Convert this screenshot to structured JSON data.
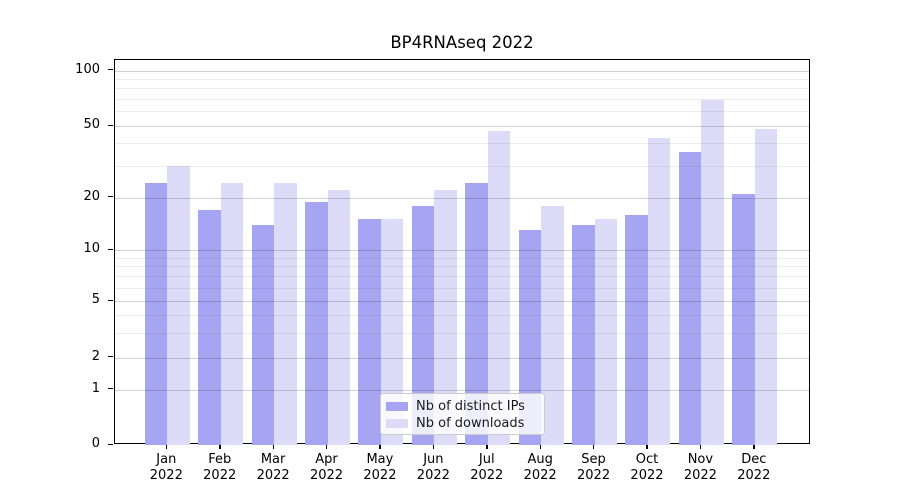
{
  "title": "BP4RNAseq 2022",
  "chart_data": {
    "type": "bar",
    "title": "BP4RNAseq 2022",
    "categories": [
      "Jan 2022",
      "Feb 2022",
      "Mar 2022",
      "Apr 2022",
      "May 2022",
      "Jun 2022",
      "Jul 2022",
      "Aug 2022",
      "Sep 2022",
      "Oct 2022",
      "Nov 2022",
      "Dec 2022"
    ],
    "series": [
      {
        "name": "Nb of distinct IPs",
        "color": "#a5a5f1",
        "values": [
          24,
          17,
          14,
          19,
          15,
          18,
          24,
          13,
          14,
          16,
          36,
          21
        ]
      },
      {
        "name": "Nb of downloads",
        "color": "#dcdcf8",
        "values": [
          30,
          24,
          24,
          22,
          15,
          22,
          47,
          18,
          15,
          43,
          69,
          48
        ]
      }
    ],
    "xlabel": "",
    "ylabel": "",
    "yscale": "symlog",
    "y_major_ticks": [
      0,
      1,
      2,
      5,
      10,
      20,
      50,
      100
    ],
    "y_minor_gridlines": [
      3,
      4,
      6,
      7,
      8,
      9,
      30,
      40,
      60,
      70,
      80,
      90
    ],
    "ylim": [
      0,
      114
    ],
    "grid": true,
    "legend_position": "lower center",
    "background_color": "#ffffff",
    "axis_color": "#000000"
  },
  "legend": {
    "items": [
      {
        "label": "Nb of distinct IPs",
        "swatch_color": "#a5a5f1"
      },
      {
        "label": "Nb of downloads",
        "swatch_color": "#dcdcf8"
      }
    ]
  }
}
